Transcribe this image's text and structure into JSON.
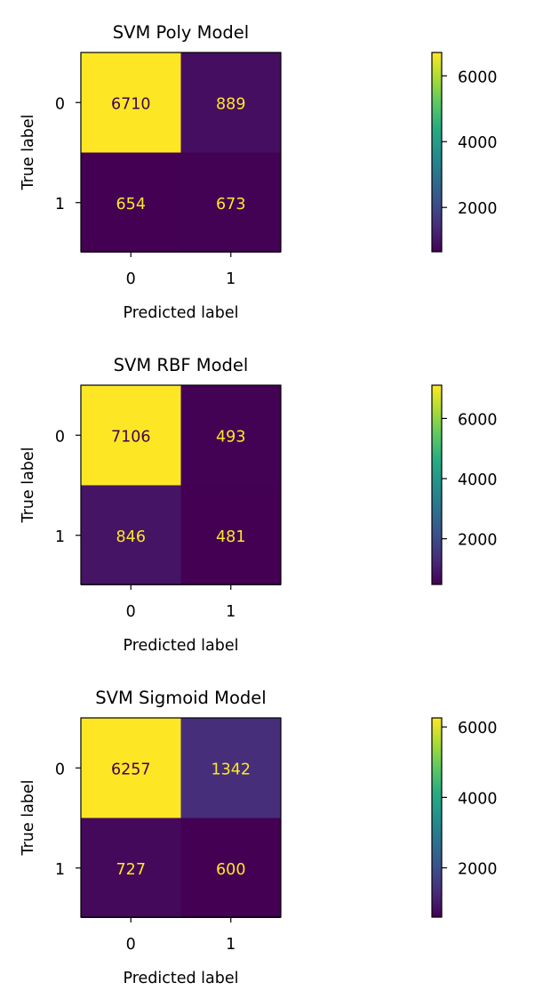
{
  "chart_data": [
    {
      "type": "heatmap",
      "title": "SVM Poly Model",
      "xlabel": "Predicted label",
      "ylabel": "True label",
      "x_ticks": [
        "0",
        "1"
      ],
      "y_ticks": [
        "0",
        "1"
      ],
      "matrix": [
        [
          6710,
          889
        ],
        [
          654,
          673
        ]
      ],
      "colorbar_ticks": [
        "2000",
        "4000",
        "6000"
      ],
      "colorbar_tick_values": [
        2000,
        4000,
        6000
      ],
      "colorbar_range": [
        654,
        6710
      ],
      "colormap": "viridis"
    },
    {
      "type": "heatmap",
      "title": "SVM RBF Model",
      "xlabel": "Predicted label",
      "ylabel": "True label",
      "x_ticks": [
        "0",
        "1"
      ],
      "y_ticks": [
        "0",
        "1"
      ],
      "matrix": [
        [
          7106,
          493
        ],
        [
          846,
          481
        ]
      ],
      "colorbar_ticks": [
        "2000",
        "4000",
        "6000"
      ],
      "colorbar_tick_values": [
        2000,
        4000,
        6000
      ],
      "colorbar_range": [
        481,
        7106
      ],
      "colormap": "viridis"
    },
    {
      "type": "heatmap",
      "title": "SVM Sigmoid Model",
      "xlabel": "Predicted label",
      "ylabel": "True label",
      "x_ticks": [
        "0",
        "1"
      ],
      "y_ticks": [
        "0",
        "1"
      ],
      "matrix": [
        [
          6257,
          1342
        ],
        [
          727,
          600
        ]
      ],
      "colorbar_ticks": [
        "2000",
        "4000",
        "6000"
      ],
      "colorbar_tick_values": [
        2000,
        4000,
        6000
      ],
      "colorbar_range": [
        600,
        6257
      ],
      "colormap": "viridis"
    }
  ],
  "colors": {
    "text_on_light": "#440154",
    "text_on_dark": "#fde725",
    "axis": "#000000"
  }
}
